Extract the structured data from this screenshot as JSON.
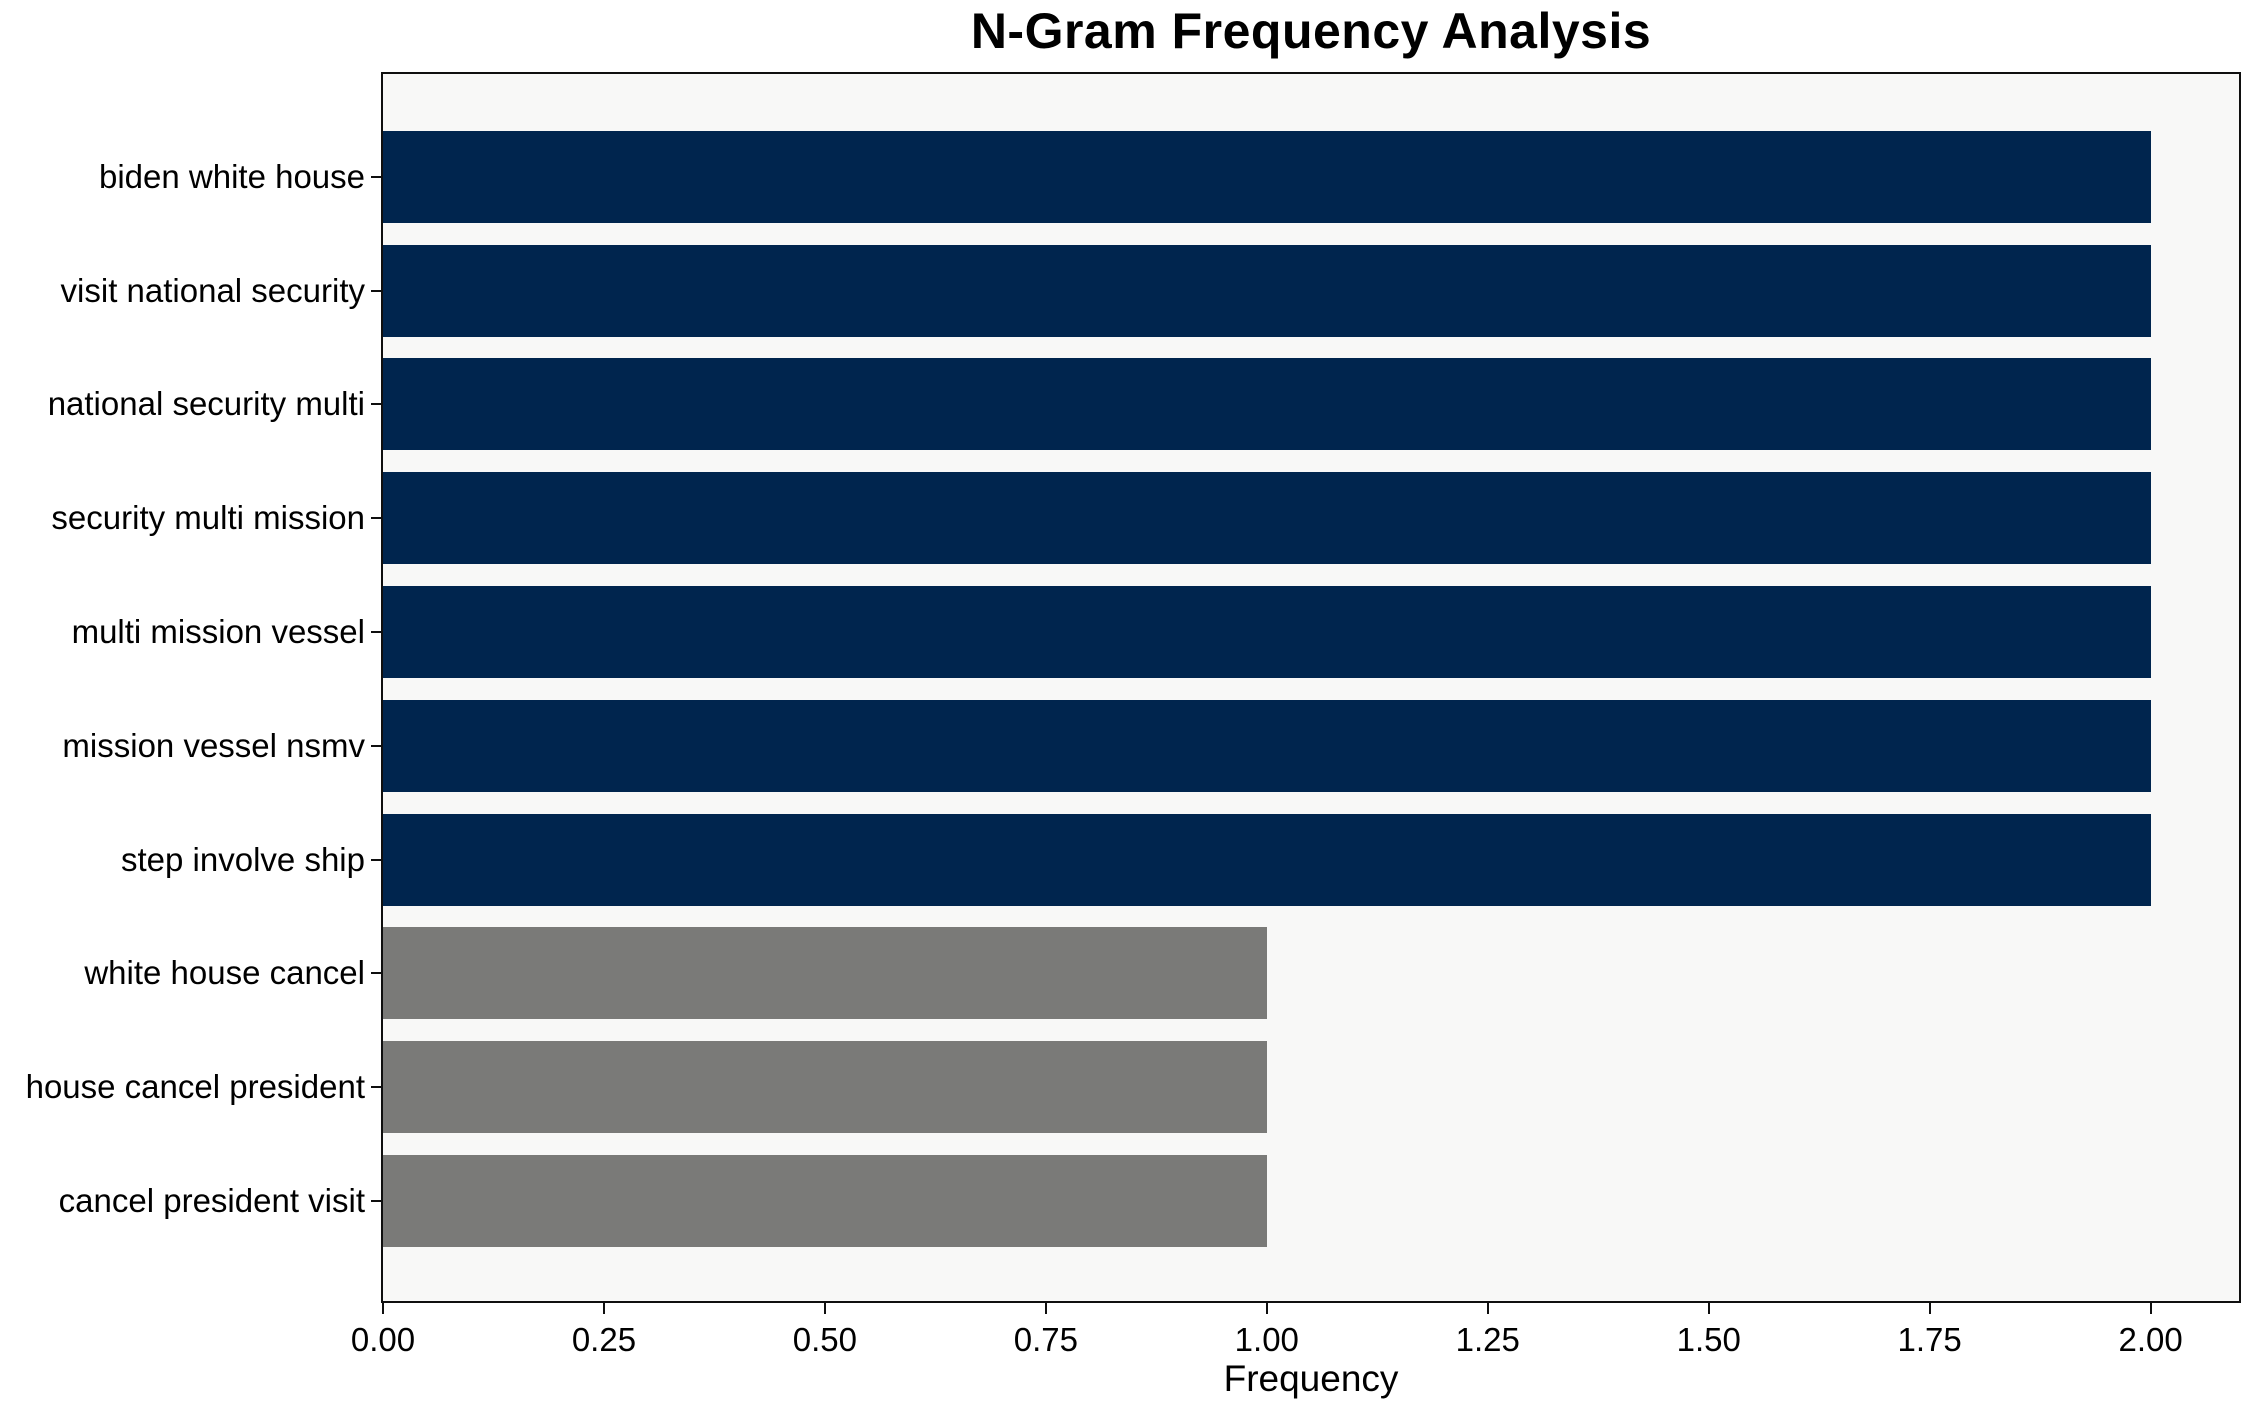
{
  "chart_data": {
    "type": "bar",
    "orientation": "horizontal",
    "title": "N-Gram Frequency Analysis",
    "xlabel": "Frequency",
    "ylabel": "",
    "categories": [
      "biden white house",
      "visit national security",
      "national security multi",
      "security multi mission",
      "multi mission vessel",
      "mission vessel nsmv",
      "step involve ship",
      "white house cancel",
      "house cancel president",
      "cancel president visit"
    ],
    "values": [
      2,
      2,
      2,
      2,
      2,
      2,
      2,
      1,
      1,
      1
    ],
    "bar_colors": [
      "#00254e",
      "#00254e",
      "#00254e",
      "#00254e",
      "#00254e",
      "#00254e",
      "#00254e",
      "#7a7a78",
      "#7a7a78",
      "#7a7a78"
    ],
    "xlim": [
      0,
      2.1
    ],
    "x_tick_values": [
      0.0,
      0.25,
      0.5,
      0.75,
      1.0,
      1.25,
      1.5,
      1.75,
      2.0
    ],
    "x_tick_labels": [
      "0.00",
      "0.25",
      "0.50",
      "0.75",
      "1.00",
      "1.25",
      "1.50",
      "1.75",
      "2.00"
    ],
    "grid": false,
    "legend": null,
    "colors": {
      "bar_primary": "#00254e",
      "bar_secondary": "#7a7a78",
      "plot_background": "#f8f8f7",
      "figure_background": "#ffffff",
      "spine": "#0f0f0f",
      "text": "#000000"
    }
  }
}
